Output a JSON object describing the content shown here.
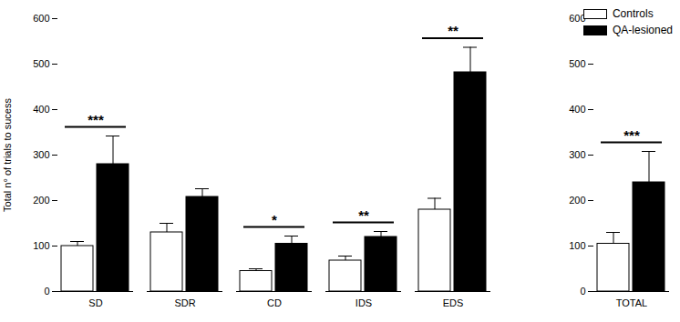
{
  "chart_data": {
    "type": "bar",
    "y_label": "Total n° of trials to sucess",
    "categories": [
      "SD",
      "SDR",
      "CD",
      "IDS",
      "EDS",
      null,
      "TOTAL"
    ],
    "series": [
      {
        "name": "Controls",
        "color": "#ffffff",
        "values": [
          100,
          130,
          45,
          68,
          180,
          null,
          105
        ],
        "errors": [
          10,
          20,
          5,
          10,
          25,
          null,
          25
        ]
      },
      {
        "name": "QA-lesioned",
        "color": "#000000",
        "values": [
          280,
          208,
          105,
          120,
          482,
          null,
          240
        ],
        "errors": [
          62,
          18,
          17,
          12,
          55,
          null,
          68
        ]
      }
    ],
    "annotations": [
      {
        "category": "SD",
        "text": "***"
      },
      {
        "category": "CD",
        "text": "*"
      },
      {
        "category": "IDS",
        "text": "**"
      },
      {
        "category": "EDS",
        "text": "**"
      },
      {
        "category": "TOTAL",
        "text": "***"
      }
    ],
    "ylim": [
      0,
      600
    ],
    "yticks": [
      0,
      100,
      200,
      300,
      400,
      500,
      600
    ],
    "legend": "top-right",
    "grid": false
  }
}
